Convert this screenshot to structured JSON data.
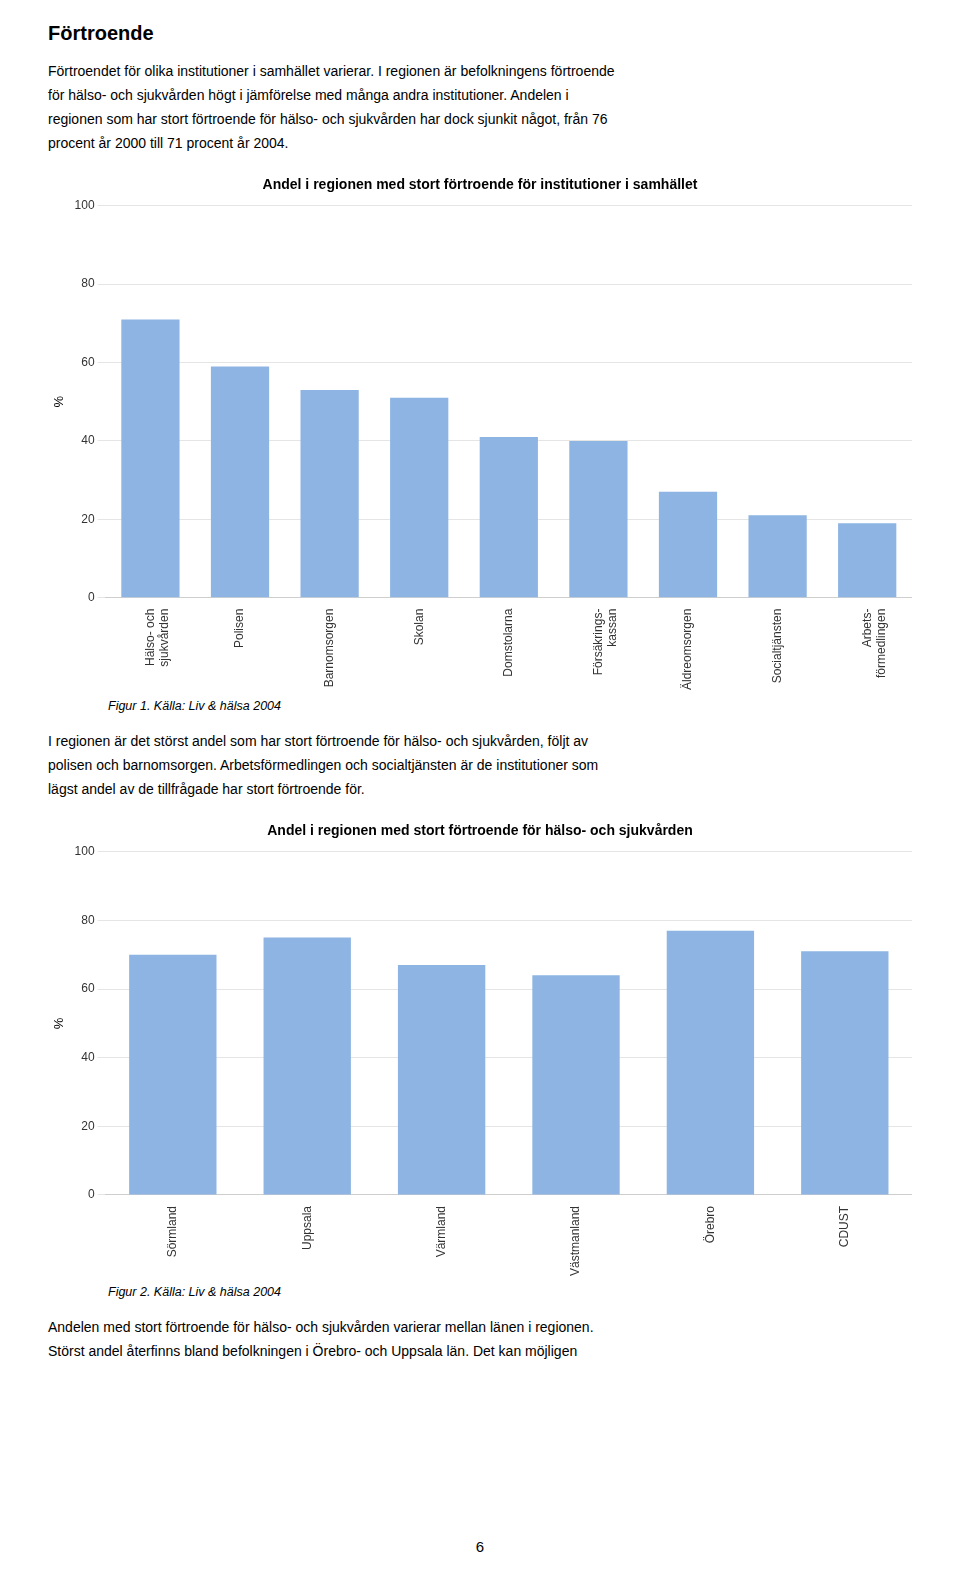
{
  "title": "Förtroende",
  "intro_lines": [
    "Förtroendet för olika institutioner i samhället varierar. I regionen är befolkningens förtroende",
    "för hälso- och sjukvården högt i jämförelse med många andra institutioner. Andelen i",
    "regionen som har stort förtroende för hälso- och sjukvården har dock sjunkit något, från 76",
    "procent år 2000 till 71 procent år 2004."
  ],
  "mid_lines": [
    "I regionen är det störst andel som har stort förtroende för hälso- och sjukvården, följt av",
    "polisen och barnomsorgen. Arbetsförmedlingen och socialtjänsten är de institutioner som",
    "lägst andel av de tillfrågade har stort förtroende för."
  ],
  "end_lines": [
    "Andelen med stort förtroende för hälso- och sjukvården varierar mellan länen i regionen.",
    "Störst andel återfinns bland befolkningen i Örebro- och Uppsala län. Det kan möjligen"
  ],
  "page_number": "6",
  "chart_data": [
    {
      "type": "bar",
      "title": "Andel i regionen med stort förtroende för institutioner i samhället",
      "categories": [
        "Hälso- och\nsjukvården",
        "Polisen",
        "Barnomsorgen",
        "Skolan",
        "Domstolarna",
        "Försäkrings-\nkassan",
        "Äldreomsorgen",
        "Socialtjänsten",
        "Arbets-\nförmedlingen"
      ],
      "values": [
        71,
        59,
        53,
        51,
        41,
        40,
        27,
        21,
        19
      ],
      "ylabel": "%",
      "ylim": [
        0,
        100
      ],
      "yticks": [
        0,
        20,
        40,
        60,
        80,
        100
      ],
      "color": "#8DB4E2",
      "grid": true,
      "caption": "Figur 1. Källa: Liv & hälsa 2004"
    },
    {
      "type": "bar",
      "title": "Andel i regionen med stort förtroende för hälso- och sjukvården",
      "categories": [
        "Sörmland",
        "Uppsala",
        "Värmland",
        "Västmanland",
        "Örebro",
        "CDUST"
      ],
      "values": [
        70,
        75,
        67,
        64,
        77,
        71
      ],
      "ylabel": "%",
      "ylim": [
        0,
        100
      ],
      "yticks": [
        0,
        20,
        40,
        60,
        80,
        100
      ],
      "color": "#8DB4E2",
      "grid": true,
      "caption": "Figur 2. Källa: Liv & hälsa 2004"
    }
  ]
}
